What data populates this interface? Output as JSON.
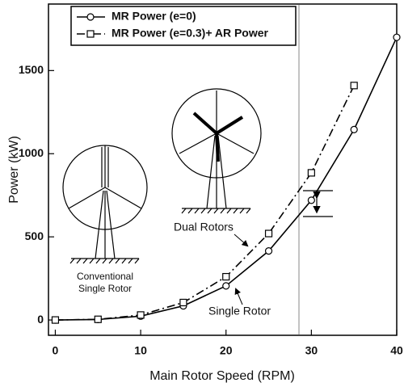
{
  "chart_data": {
    "type": "line",
    "x_label": "Main Rotor Speed (RPM)",
    "y_label": "Power (kW)",
    "x": [
      0,
      5,
      10,
      15,
      20,
      25,
      30,
      35,
      40
    ],
    "series": [
      {
        "name": "MR Power (e=0)",
        "color": "#000000",
        "marker": "circle",
        "dash": "solid",
        "values": [
          0,
          3,
          23,
          85,
          205,
          415,
          720,
          1145,
          1700
        ]
      },
      {
        "name": "MR Power (e=0.3)+ AR Power",
        "color": "#000000",
        "marker": "square",
        "dash": "dashdot",
        "values": [
          0,
          4,
          30,
          105,
          260,
          520,
          885,
          1410,
          null
        ]
      }
    ],
    "xlim": [
      -0.8,
      40
    ],
    "ylim": [
      -92,
      1900
    ],
    "xticks": [
      0,
      10,
      20,
      30,
      40
    ],
    "yticks": [
      0,
      500,
      1000,
      1500
    ],
    "grid": false,
    "legend": "upper left",
    "annotations": [
      "Dual Rotors",
      "Single Rotor",
      "Conventional",
      "Single Rotor"
    ]
  }
}
